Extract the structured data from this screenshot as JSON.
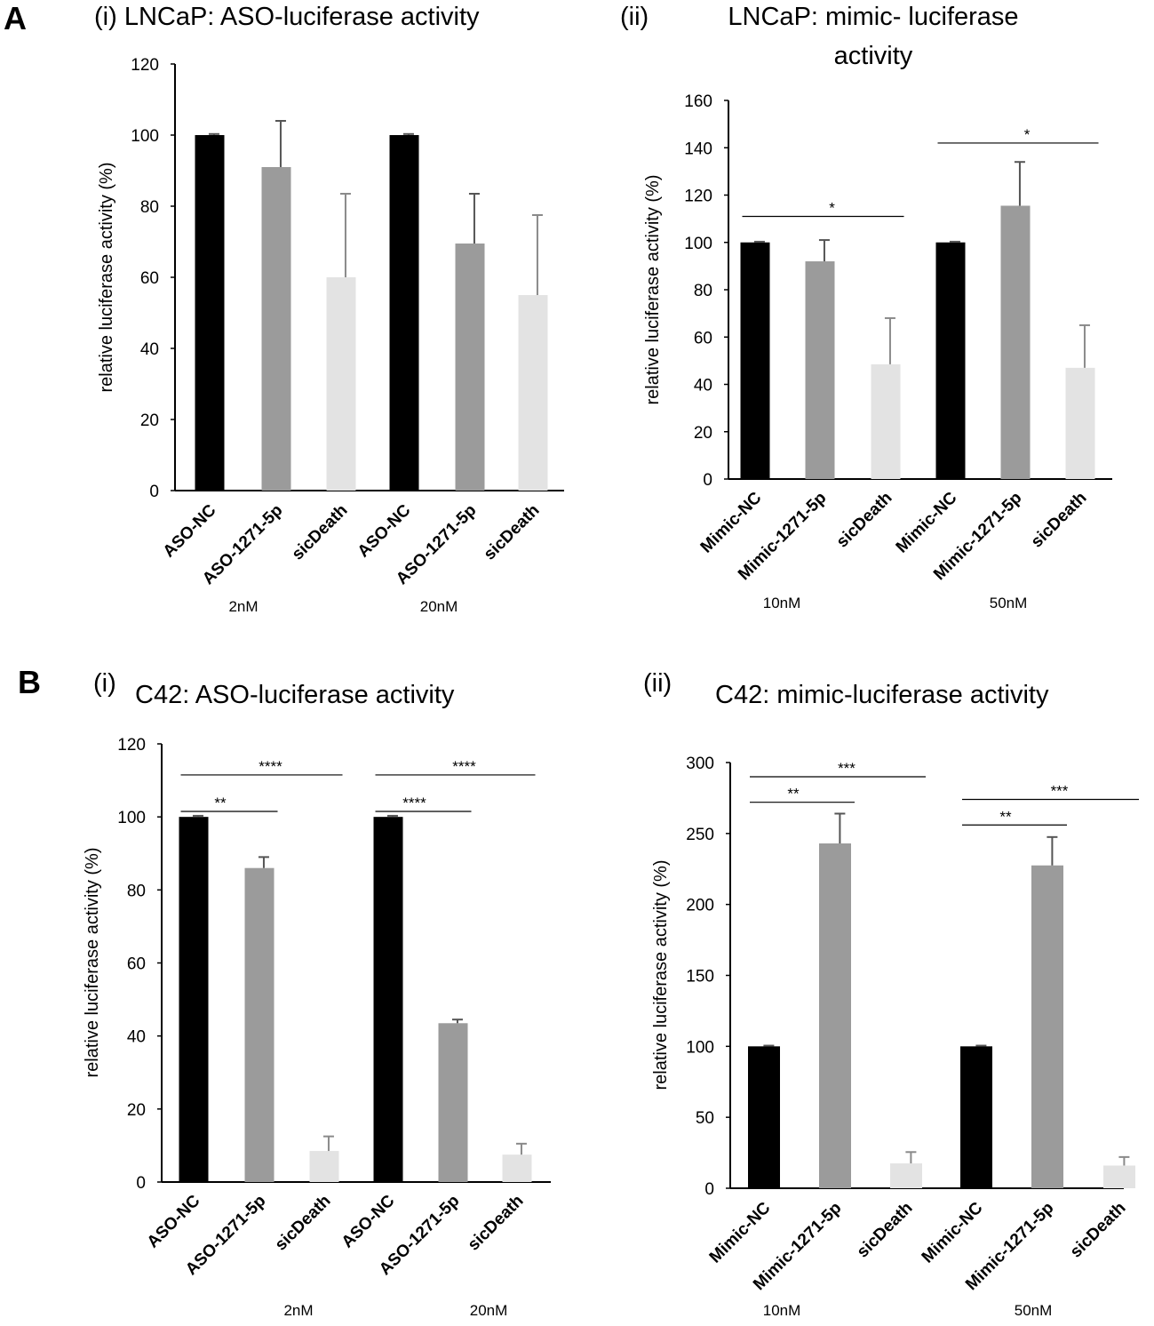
{
  "panels": {
    "A": {
      "letter": "A",
      "i_title": "(i)  LNCaP: ASO-luciferase activity",
      "ii_num": "(ii)",
      "ii_title_l1": "LNCaP: mimic- luciferase",
      "ii_title_l2": "activity"
    },
    "B": {
      "letter": "B",
      "i_num": "(i)",
      "i_title": "C42: ASO-luciferase activity",
      "ii_num": "(ii)",
      "ii_title": "C42: mimic-luciferase activity"
    }
  },
  "chart_data": [
    {
      "id": "Ai",
      "type": "bar",
      "title": "LNCaP: ASO-luciferase activity",
      "ylabel": "relative luciferase activity (%)",
      "ylim": [
        0,
        120
      ],
      "yticks": [
        0,
        20,
        40,
        60,
        80,
        100,
        120
      ],
      "categories": [
        "ASO-NC",
        "ASO-1271-5p",
        "sicDeath",
        "ASO-NC",
        "ASO-1271-5p",
        "sicDeath"
      ],
      "groups": [
        "2nM",
        "20nM"
      ],
      "values": [
        100,
        91,
        60,
        100,
        69.5,
        55
      ],
      "errors": [
        0.3,
        13,
        23.5,
        0.3,
        14,
        22.5
      ],
      "colors": [
        "#000000",
        "#9b9b9b",
        "#e3e3e3",
        "#000000",
        "#9b9b9b",
        "#e3e3e3"
      ],
      "significance": []
    },
    {
      "id": "Aii",
      "type": "bar",
      "title": "LNCaP: mimic- luciferase activity",
      "ylabel": "relative luciferase activity (%)",
      "ylim": [
        0,
        160
      ],
      "yticks": [
        0,
        20,
        40,
        60,
        80,
        100,
        120,
        140,
        160
      ],
      "categories": [
        "Mimic-NC",
        "Mimic-1271-5p",
        "sicDeath",
        "Mimic-NC",
        "Mimic-1271-5p",
        "sicDeath"
      ],
      "groups": [
        "10nM",
        "50nM"
      ],
      "values": [
        100,
        92,
        48.5,
        100,
        115.5,
        47
      ],
      "errors": [
        0.3,
        9,
        19.5,
        0.3,
        18.5,
        18
      ],
      "colors": [
        "#000000",
        "#9b9b9b",
        "#e3e3e3",
        "#000000",
        "#9b9b9b",
        "#e3e3e3"
      ],
      "significance": [
        {
          "from": 0,
          "to": 2,
          "label": "*",
          "y": 111
        },
        {
          "from": 3,
          "to": 5,
          "label": "*",
          "y": 142
        }
      ]
    },
    {
      "id": "Bi",
      "type": "bar",
      "title": "C42: ASO-luciferase activity",
      "ylabel": "relative luciferase activity (%)",
      "ylim": [
        0,
        120
      ],
      "yticks": [
        0,
        20,
        40,
        60,
        80,
        100,
        120
      ],
      "categories": [
        "ASO-NC",
        "ASO-1271-5p",
        "sicDeath",
        "ASO-NC",
        "ASO-1271-5p",
        "sicDeath"
      ],
      "groups": [
        "2nM",
        "20nM"
      ],
      "values": [
        100,
        86,
        8.5,
        100,
        43.5,
        7.5
      ],
      "errors": [
        0.3,
        3,
        4,
        0.3,
        1,
        3
      ],
      "colors": [
        "#000000",
        "#9b9b9b",
        "#e3e3e3",
        "#000000",
        "#9b9b9b",
        "#e3e3e3"
      ],
      "significance": [
        {
          "from": 0,
          "to": 1,
          "label": "**",
          "y": 101.5
        },
        {
          "from": 0,
          "to": 2,
          "label": "****",
          "y": 111.5
        },
        {
          "from": 3,
          "to": 4,
          "label": "****",
          "y": 101.5
        },
        {
          "from": 3,
          "to": 5,
          "label": "****",
          "y": 111.5
        }
      ]
    },
    {
      "id": "Bii",
      "type": "bar",
      "title": "C42: mimic-luciferase activity",
      "ylabel": "relative luciferase activity (%)",
      "ylim": [
        0,
        300
      ],
      "yticks": [
        0,
        50,
        100,
        150,
        200,
        250,
        300
      ],
      "categories": [
        "Mimic-NC",
        "Mimic-1271-5p",
        "sicDeath",
        "Mimic-NC",
        "Mimic-1271-5p",
        "sicDeath"
      ],
      "groups": [
        "10nM",
        "50nM"
      ],
      "values": [
        100,
        243,
        17.5,
        100,
        227.5,
        16
      ],
      "errors": [
        0.5,
        21,
        8,
        0.5,
        20,
        6
      ],
      "colors": [
        "#000000",
        "#9b9b9b",
        "#e3e3e3",
        "#000000",
        "#9b9b9b",
        "#e3e3e3"
      ],
      "significance": [
        {
          "from": 0,
          "to": 1,
          "label": "**",
          "y": 272
        },
        {
          "from": 0,
          "to": 2,
          "label": "***",
          "y": 290
        },
        {
          "from": 3,
          "to": 4,
          "label": "**",
          "y": 256
        },
        {
          "from": 3,
          "to": 5,
          "label": "***",
          "y": 274
        }
      ]
    }
  ]
}
